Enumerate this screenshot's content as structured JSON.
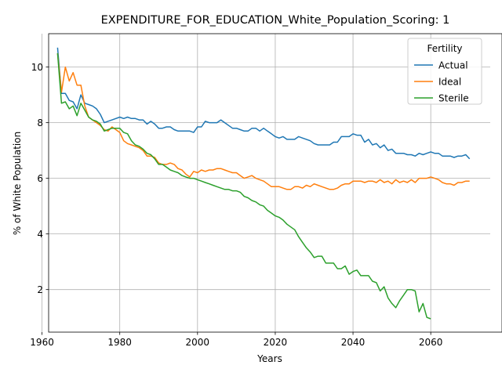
{
  "chart_data": {
    "type": "line",
    "title": "EXPENDITURE_FOR_EDUCATION_White_Population_Scoring: 1",
    "xlabel": "Years",
    "ylabel": "% of White Population",
    "xlim": [
      1961.7,
      2075.3
    ],
    "ylim": [
      0.47,
      11.2
    ],
    "xticks": [
      1960,
      1980,
      2000,
      2020,
      2040,
      2060
    ],
    "yticks": [
      2,
      4,
      6,
      8,
      10
    ],
    "grid": true,
    "legend": {
      "title": "Fertility",
      "placement": "top-right"
    },
    "series": [
      {
        "name": "Actual",
        "color": "#1f77b4",
        "x": [
          1964,
          1965,
          1966,
          1967,
          1968,
          1969,
          1970,
          1971,
          1972,
          1973,
          1974,
          1975,
          1976,
          1977,
          1978,
          1979,
          1980,
          1981,
          1982,
          1983,
          1984,
          1985,
          1986,
          1987,
          1988,
          1989,
          1990,
          1991,
          1992,
          1993,
          1994,
          1995,
          1996,
          1997,
          1998,
          1999,
          2000,
          2001,
          2002,
          2003,
          2004,
          2005,
          2006,
          2007,
          2008,
          2009,
          2010,
          2011,
          2012,
          2013,
          2014,
          2015,
          2016,
          2017,
          2018,
          2019,
          2020,
          2021,
          2022,
          2023,
          2024,
          2025,
          2026,
          2027,
          2028,
          2029,
          2030,
          2031,
          2032,
          2033,
          2034,
          2035,
          2036,
          2037,
          2038,
          2039,
          2040,
          2041,
          2042,
          2043,
          2044,
          2045,
          2046,
          2047,
          2048,
          2049,
          2050,
          2051,
          2052,
          2053,
          2054,
          2055,
          2056,
          2057,
          2058,
          2059,
          2060,
          2061,
          2062,
          2063,
          2064,
          2065,
          2066,
          2067,
          2068,
          2069,
          2070
        ],
        "y": [
          10.7,
          9.05,
          9.05,
          8.8,
          8.75,
          8.5,
          9.0,
          8.7,
          8.65,
          8.6,
          8.5,
          8.3,
          8.0,
          8.05,
          8.1,
          8.15,
          8.2,
          8.15,
          8.2,
          8.15,
          8.15,
          8.1,
          8.1,
          7.95,
          8.05,
          7.95,
          7.8,
          7.8,
          7.85,
          7.85,
          7.75,
          7.7,
          7.7,
          7.7,
          7.7,
          7.65,
          7.85,
          7.85,
          8.05,
          8.0,
          8.0,
          8.0,
          8.1,
          8.0,
          7.9,
          7.8,
          7.8,
          7.75,
          7.7,
          7.7,
          7.8,
          7.8,
          7.7,
          7.8,
          7.7,
          7.6,
          7.5,
          7.45,
          7.5,
          7.4,
          7.4,
          7.4,
          7.5,
          7.45,
          7.4,
          7.35,
          7.25,
          7.2,
          7.2,
          7.2,
          7.2,
          7.3,
          7.3,
          7.5,
          7.5,
          7.5,
          7.6,
          7.55,
          7.55,
          7.3,
          7.4,
          7.2,
          7.25,
          7.1,
          7.2,
          7.0,
          7.05,
          6.9,
          6.9,
          6.9,
          6.85,
          6.85,
          6.8,
          6.9,
          6.85,
          6.9,
          6.95,
          6.9,
          6.9,
          6.8,
          6.8,
          6.8,
          6.75,
          6.8,
          6.8,
          6.85,
          6.7
        ]
      },
      {
        "name": "Ideal",
        "color": "#ff7f0e",
        "x": [
          1964,
          1965,
          1966,
          1967,
          1968,
          1969,
          1970,
          1971,
          1972,
          1973,
          1974,
          1975,
          1976,
          1977,
          1978,
          1979,
          1980,
          1981,
          1982,
          1983,
          1984,
          1985,
          1986,
          1987,
          1988,
          1989,
          1990,
          1991,
          1992,
          1993,
          1994,
          1995,
          1996,
          1997,
          1998,
          1999,
          2000,
          2001,
          2002,
          2003,
          2004,
          2005,
          2006,
          2007,
          2008,
          2009,
          2010,
          2011,
          2012,
          2013,
          2014,
          2015,
          2016,
          2017,
          2018,
          2019,
          2020,
          2021,
          2022,
          2023,
          2024,
          2025,
          2026,
          2027,
          2028,
          2029,
          2030,
          2031,
          2032,
          2033,
          2034,
          2035,
          2036,
          2037,
          2038,
          2039,
          2040,
          2041,
          2042,
          2043,
          2044,
          2045,
          2046,
          2047,
          2048,
          2049,
          2050,
          2051,
          2052,
          2053,
          2054,
          2055,
          2056,
          2057,
          2058,
          2059,
          2060,
          2061,
          2062,
          2063,
          2064,
          2065,
          2066,
          2067,
          2068,
          2069,
          2070
        ],
        "y": [
          10.5,
          9.1,
          10.0,
          9.5,
          9.8,
          9.35,
          9.35,
          8.6,
          8.2,
          8.1,
          8.0,
          7.9,
          7.75,
          7.7,
          7.85,
          7.75,
          7.65,
          7.35,
          7.25,
          7.2,
          7.15,
          7.1,
          7.0,
          6.8,
          6.8,
          6.75,
          6.55,
          6.5,
          6.5,
          6.55,
          6.5,
          6.35,
          6.3,
          6.15,
          6.05,
          6.25,
          6.2,
          6.3,
          6.25,
          6.3,
          6.3,
          6.35,
          6.35,
          6.3,
          6.25,
          6.2,
          6.2,
          6.1,
          6.0,
          6.05,
          6.1,
          6.0,
          5.95,
          5.9,
          5.8,
          5.7,
          5.7,
          5.7,
          5.65,
          5.6,
          5.6,
          5.7,
          5.7,
          5.65,
          5.75,
          5.7,
          5.8,
          5.75,
          5.7,
          5.65,
          5.6,
          5.6,
          5.65,
          5.75,
          5.8,
          5.8,
          5.9,
          5.9,
          5.9,
          5.85,
          5.9,
          5.9,
          5.85,
          5.95,
          5.85,
          5.9,
          5.8,
          5.95,
          5.85,
          5.9,
          5.85,
          5.95,
          5.85,
          6.0,
          6.0,
          6.0,
          6.05,
          6.0,
          5.95,
          5.85,
          5.8,
          5.8,
          5.75,
          5.85,
          5.85,
          5.9,
          5.9
        ]
      },
      {
        "name": "Sterile",
        "color": "#2ca02c",
        "x": [
          1964,
          1965,
          1966,
          1967,
          1968,
          1969,
          1970,
          1971,
          1972,
          1973,
          1974,
          1975,
          1976,
          1977,
          1978,
          1979,
          1980,
          1981,
          1982,
          1983,
          1984,
          1985,
          1986,
          1987,
          1988,
          1989,
          1990,
          1991,
          1992,
          1993,
          1994,
          1995,
          1996,
          1997,
          1998,
          1999,
          2000,
          2001,
          2002,
          2003,
          2004,
          2005,
          2006,
          2007,
          2008,
          2009,
          2010,
          2011,
          2012,
          2013,
          2014,
          2015,
          2016,
          2017,
          2018,
          2019,
          2020,
          2021,
          2022,
          2023,
          2024,
          2025,
          2026,
          2027,
          2028,
          2029,
          2030,
          2031,
          2032,
          2033,
          2034,
          2035,
          2036,
          2037,
          2038,
          2039,
          2040,
          2041,
          2042,
          2043,
          2044,
          2045,
          2046,
          2047,
          2048,
          2049,
          2050,
          2051,
          2052,
          2053,
          2054,
          2055,
          2056,
          2057,
          2058,
          2059,
          2060
        ],
        "y": [
          10.5,
          8.7,
          8.75,
          8.5,
          8.6,
          8.25,
          8.7,
          8.45,
          8.2,
          8.1,
          8.05,
          7.95,
          7.7,
          7.75,
          7.8,
          7.8,
          7.8,
          7.65,
          7.6,
          7.35,
          7.2,
          7.15,
          7.05,
          6.9,
          6.85,
          6.7,
          6.5,
          6.5,
          6.4,
          6.3,
          6.25,
          6.2,
          6.1,
          6.05,
          6.0,
          6.0,
          5.95,
          5.9,
          5.85,
          5.8,
          5.75,
          5.7,
          5.65,
          5.6,
          5.6,
          5.55,
          5.55,
          5.5,
          5.35,
          5.3,
          5.2,
          5.15,
          5.05,
          5.0,
          4.85,
          4.75,
          4.65,
          4.6,
          4.5,
          4.35,
          4.25,
          4.15,
          3.9,
          3.7,
          3.5,
          3.35,
          3.15,
          3.2,
          3.2,
          2.95,
          2.95,
          2.95,
          2.75,
          2.75,
          2.85,
          2.55,
          2.65,
          2.7,
          2.5,
          2.5,
          2.5,
          2.3,
          2.25,
          1.95,
          2.1,
          1.7,
          1.5,
          1.35,
          1.6,
          1.8,
          2.0,
          2.0,
          1.95,
          1.2,
          1.5,
          1.0,
          0.95
        ]
      }
    ]
  }
}
